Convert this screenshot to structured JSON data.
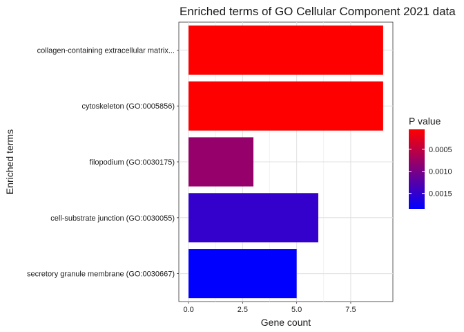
{
  "chart_data": {
    "type": "bar",
    "orientation": "horizontal",
    "title": "Enriched terms of GO Cellular Component 2021 data",
    "xlabel": "Gene count",
    "ylabel": "Enriched terms",
    "categories": [
      "collagen-containing extracellular matrix...",
      "cytoskeleton (GO:0005856)",
      "filopodium (GO:0030175)",
      "cell-substrate junction (GO:0030055)",
      "secretory granule membrane (GO:0030667)"
    ],
    "values": [
      9,
      9,
      3,
      6,
      5
    ],
    "p_values": [
      5e-05,
      5e-05,
      0.0008,
      0.00148,
      0.00185
    ],
    "xlim": [
      -0.45,
      9.45
    ],
    "xticks": [
      0,
      2.5,
      5,
      7.5
    ],
    "xtick_labels": [
      "0.0",
      "2.5",
      "5.0",
      "7.5"
    ],
    "grid": true,
    "legend": {
      "title": "P value",
      "placement": "right",
      "type": "colorbar",
      "range": [
        5e-05,
        0.00185
      ],
      "ticks": [
        0.0005,
        0.001,
        0.0015
      ],
      "tick_labels": [
        "0.0005",
        "0.0010",
        "0.0015"
      ],
      "color_low": "#ff0000",
      "color_high": "#0000ff"
    }
  }
}
